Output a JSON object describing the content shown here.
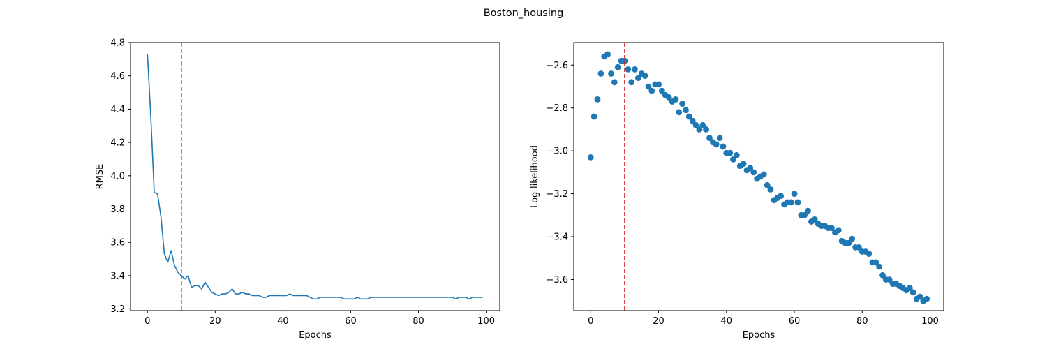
{
  "figure": {
    "title": "Boston_housing"
  },
  "colors": {
    "series": "#1f77b4",
    "marker_line": "#d62728",
    "axes": "#000000"
  },
  "chart_data": [
    {
      "type": "line",
      "title": "",
      "xlabel": "Epochs",
      "ylabel": "RMSE",
      "xlim": [
        -5,
        104
      ],
      "ylim": [
        3.19,
        4.8
      ],
      "xticks": [
        0,
        20,
        40,
        60,
        80,
        100
      ],
      "yticks": [
        3.2,
        3.4,
        3.6,
        3.8,
        4.0,
        4.2,
        4.4,
        4.6,
        4.8
      ],
      "ytick_labels": [
        "3.2",
        "3.4",
        "3.6",
        "3.8",
        "4.0",
        "4.2",
        "4.4",
        "4.6",
        "4.8"
      ],
      "vline": {
        "x": 10,
        "style": "dashed",
        "color": "#d62728"
      },
      "grid": false,
      "series": [
        {
          "x": [
            0,
            1,
            2,
            3,
            4,
            5,
            6,
            7,
            8,
            9,
            10,
            11,
            12,
            13,
            14,
            15,
            16,
            17,
            18,
            19,
            20,
            21,
            22,
            23,
            24,
            25,
            26,
            27,
            28,
            29,
            30,
            31,
            32,
            33,
            34,
            35,
            36,
            37,
            38,
            39,
            40,
            41,
            42,
            43,
            44,
            45,
            46,
            47,
            48,
            49,
            50,
            51,
            52,
            53,
            54,
            55,
            56,
            57,
            58,
            59,
            60,
            61,
            62,
            63,
            64,
            65,
            66,
            67,
            68,
            69,
            70,
            71,
            72,
            73,
            74,
            75,
            76,
            77,
            78,
            79,
            80,
            81,
            82,
            83,
            84,
            85,
            86,
            87,
            88,
            89,
            90,
            91,
            92,
            93,
            94,
            95,
            96,
            97,
            98,
            99
          ],
          "y": [
            4.73,
            4.35,
            3.9,
            3.89,
            3.75,
            3.53,
            3.48,
            3.55,
            3.46,
            3.42,
            3.4,
            3.38,
            3.4,
            3.33,
            3.34,
            3.34,
            3.32,
            3.36,
            3.33,
            3.3,
            3.29,
            3.28,
            3.29,
            3.29,
            3.3,
            3.32,
            3.29,
            3.29,
            3.3,
            3.29,
            3.29,
            3.28,
            3.28,
            3.28,
            3.27,
            3.27,
            3.28,
            3.28,
            3.28,
            3.28,
            3.28,
            3.28,
            3.29,
            3.28,
            3.28,
            3.28,
            3.28,
            3.28,
            3.27,
            3.26,
            3.26,
            3.27,
            3.27,
            3.27,
            3.27,
            3.27,
            3.27,
            3.27,
            3.26,
            3.26,
            3.26,
            3.26,
            3.27,
            3.26,
            3.26,
            3.26,
            3.27,
            3.27,
            3.27,
            3.27,
            3.27,
            3.27,
            3.27,
            3.27,
            3.27,
            3.27,
            3.27,
            3.27,
            3.27,
            3.27,
            3.27,
            3.27,
            3.27,
            3.27,
            3.27,
            3.27,
            3.27,
            3.27,
            3.27,
            3.27,
            3.27,
            3.26,
            3.27,
            3.27,
            3.27,
            3.26,
            3.27,
            3.27,
            3.27,
            3.27
          ]
        }
      ]
    },
    {
      "type": "scatter",
      "title": "",
      "xlabel": "Epochs",
      "ylabel": "Log-likelihood",
      "xlim": [
        -5,
        104
      ],
      "ylim": [
        -3.745,
        -2.495
      ],
      "xticks": [
        0,
        20,
        40,
        60,
        80,
        100
      ],
      "yticks": [
        -3.6,
        -3.4,
        -3.2,
        -3.0,
        -2.8,
        -2.6
      ],
      "ytick_labels": [
        "−3.6",
        "−3.4",
        "−3.2",
        "−3.0",
        "−2.8",
        "−2.6"
      ],
      "vline": {
        "x": 10,
        "style": "dashed",
        "color": "#d62728"
      },
      "grid": false,
      "series": [
        {
          "x": [
            0,
            1,
            2,
            3,
            4,
            5,
            6,
            7,
            8,
            9,
            10,
            11,
            12,
            13,
            14,
            15,
            16,
            17,
            18,
            19,
            20,
            21,
            22,
            23,
            24,
            25,
            26,
            27,
            28,
            29,
            30,
            31,
            32,
            33,
            34,
            35,
            36,
            37,
            38,
            39,
            40,
            41,
            42,
            43,
            44,
            45,
            46,
            47,
            48,
            49,
            50,
            51,
            52,
            53,
            54,
            55,
            56,
            57,
            58,
            59,
            60,
            61,
            62,
            63,
            64,
            65,
            66,
            67,
            68,
            69,
            70,
            71,
            72,
            73,
            74,
            75,
            76,
            77,
            78,
            79,
            80,
            81,
            82,
            83,
            84,
            85,
            86,
            87,
            88,
            89,
            90,
            91,
            92,
            93,
            94,
            95,
            96,
            97,
            98,
            99
          ],
          "y": [
            -3.03,
            -2.84,
            -2.76,
            -2.64,
            -2.56,
            -2.55,
            -2.64,
            -2.68,
            -2.61,
            -2.58,
            -2.58,
            -2.62,
            -2.68,
            -2.62,
            -2.66,
            -2.64,
            -2.65,
            -2.7,
            -2.72,
            -2.69,
            -2.69,
            -2.72,
            -2.74,
            -2.75,
            -2.77,
            -2.76,
            -2.82,
            -2.78,
            -2.81,
            -2.84,
            -2.86,
            -2.88,
            -2.9,
            -2.88,
            -2.9,
            -2.94,
            -2.96,
            -2.97,
            -2.94,
            -2.98,
            -3.01,
            -3.01,
            -3.04,
            -3.02,
            -3.07,
            -3.06,
            -3.09,
            -3.08,
            -3.1,
            -3.13,
            -3.12,
            -3.11,
            -3.16,
            -3.18,
            -3.23,
            -3.22,
            -3.21,
            -3.25,
            -3.24,
            -3.24,
            -3.2,
            -3.24,
            -3.3,
            -3.3,
            -3.28,
            -3.33,
            -3.32,
            -3.34,
            -3.35,
            -3.35,
            -3.36,
            -3.36,
            -3.38,
            -3.37,
            -3.42,
            -3.43,
            -3.43,
            -3.41,
            -3.45,
            -3.45,
            -3.47,
            -3.47,
            -3.48,
            -3.52,
            -3.52,
            -3.54,
            -3.58,
            -3.6,
            -3.6,
            -3.62,
            -3.62,
            -3.63,
            -3.64,
            -3.65,
            -3.64,
            -3.66,
            -3.69,
            -3.68,
            -3.7,
            -3.69
          ]
        }
      ]
    }
  ]
}
